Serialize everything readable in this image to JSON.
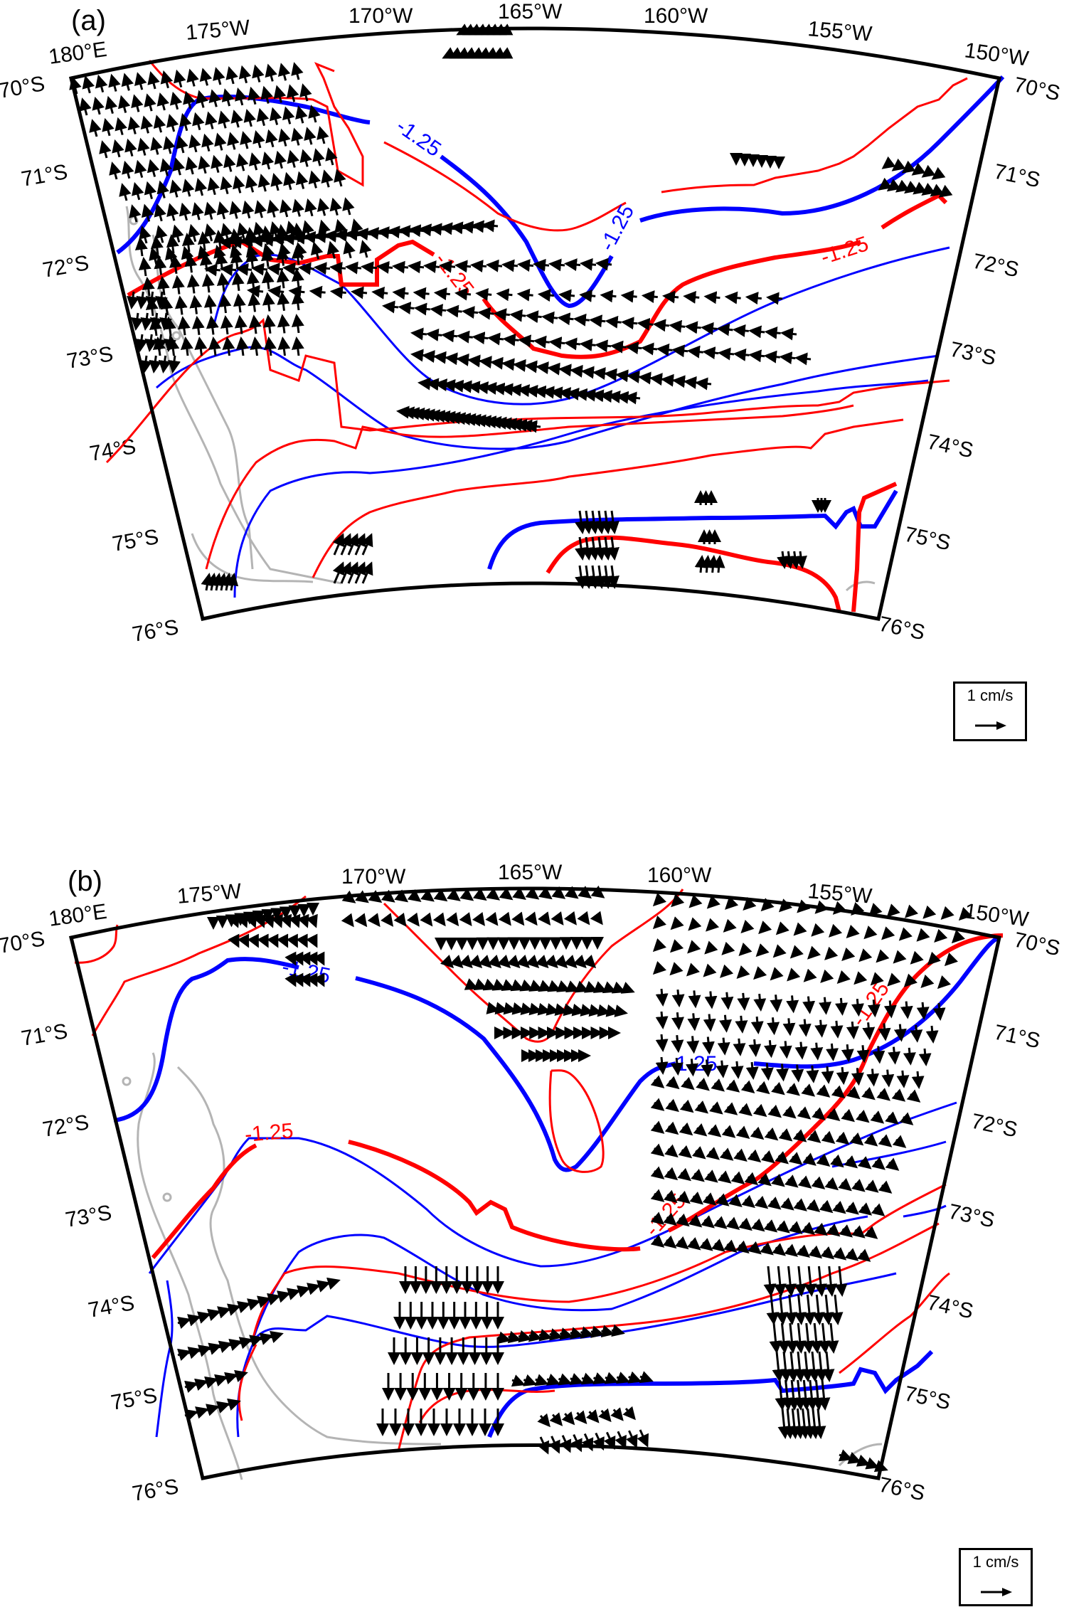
{
  "figure": {
    "panels": [
      {
        "id": "a",
        "label": "(a)",
        "legend": {
          "text": "1 cm/s"
        },
        "lon_labels": [
          "180°E",
          "175°W",
          "170°W",
          "165°W",
          "160°W",
          "155°W",
          "150°W"
        ],
        "lat_labels_left": [
          "70°S",
          "71°S",
          "72°S",
          "73°S",
          "74°S",
          "75°S",
          "76°S"
        ],
        "lat_labels_right": [
          "70°S",
          "71°S",
          "72°S",
          "73°S",
          "74°S",
          "75°S",
          "76°S"
        ],
        "contour_labels": [
          {
            "text": "-1.25",
            "color": "blue"
          },
          {
            "text": "-1.25",
            "color": "blue"
          },
          {
            "text": "-1.25",
            "color": "red"
          },
          {
            "text": "-1.25",
            "color": "red"
          }
        ]
      },
      {
        "id": "b",
        "label": "(b)",
        "legend": {
          "text": "1 cm/s"
        },
        "lon_labels": [
          "180°E",
          "175°W",
          "170°W",
          "165°W",
          "160°W",
          "155°W",
          "150°W"
        ],
        "lat_labels_left": [
          "70°S",
          "71°S",
          "72°S",
          "73°S",
          "74°S",
          "75°S",
          "76°S"
        ],
        "lat_labels_right": [
          "70°S",
          "71°S",
          "72°S",
          "73°S",
          "74°S",
          "75°S",
          "76°S"
        ],
        "contour_labels": [
          {
            "text": "-1.25",
            "color": "blue"
          },
          {
            "text": "-1.25",
            "color": "blue"
          },
          {
            "text": "-1.25",
            "color": "red"
          },
          {
            "text": "-1.25",
            "color": "red"
          },
          {
            "text": "-1.25",
            "color": "red"
          }
        ]
      }
    ],
    "colors": {
      "contour_blue": "#0000ff",
      "contour_red": "#ff0000",
      "coastline": "#b4b4b4",
      "vectors": "#000000",
      "frame": "#000000"
    },
    "contour_level": -1.25,
    "reference_vector": "1 cm/s",
    "region": {
      "lon_min": "180°E",
      "lon_max": "150°W",
      "lat_min": "76°S",
      "lat_max": "70°S"
    }
  }
}
